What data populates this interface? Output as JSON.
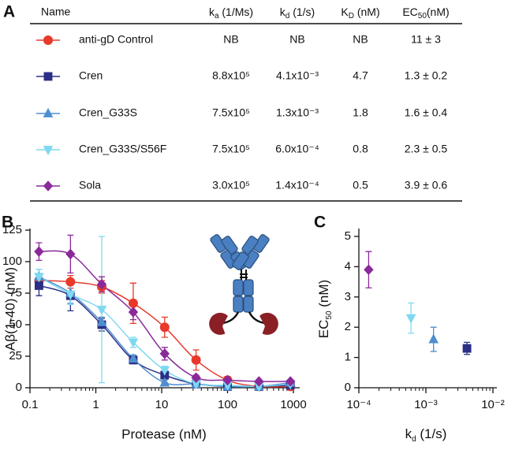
{
  "panels": {
    "a": "A",
    "b": "B",
    "c": "C"
  },
  "table": {
    "header": [
      "Name",
      {
        "main": "k",
        "sub": "a",
        "rest": " (1/Ms)"
      },
      {
        "main": "k",
        "sub": "d",
        "rest": " (1/s)"
      },
      {
        "main": "K",
        "sub": "D",
        "rest": " (nM)"
      },
      {
        "main": "EC",
        "sub": "50",
        "rest": "(nM)"
      }
    ],
    "rows": [
      [
        "NB",
        "NB",
        "NB",
        "11 ± 3"
      ],
      [
        "8.8x10⁵",
        "4.1x10⁻³",
        "4.7",
        "1.3 ± 0.2"
      ],
      [
        "7.5x10⁵",
        "1.3x10⁻³",
        "1.8",
        "1.6 ± 0.4"
      ],
      [
        "7.5x10⁵",
        "6.0x10⁻⁴",
        "0.8",
        "2.3 ± 0.5"
      ],
      [
        "3.0x10⁵",
        "1.4x10⁻⁴",
        "0.5",
        "3.9 ± 0.6"
      ]
    ]
  },
  "chart_data": [
    {
      "type": "line",
      "x_label": "Protease (nM)",
      "y_label": "Aβ(1-40) (nM)",
      "log_x": true,
      "x": [
        0.137,
        0.412,
        1.23,
        3.7,
        11.1,
        33.3,
        100,
        300,
        900
      ],
      "xlim": [
        0.1,
        1000
      ],
      "xticks": [
        0.1,
        1,
        10,
        100,
        1000
      ],
      "ylim": [
        0,
        125
      ],
      "yticks": [
        0,
        25,
        50,
        75,
        100,
        125
      ],
      "series": [
        {
          "name": "anti-gD Control",
          "color": "#e8392b",
          "marker": "circle",
          "values": [
            85,
            84,
            80,
            67,
            48,
            22,
            6,
            1,
            1
          ],
          "errors": [
            5,
            5,
            5,
            16,
            8,
            8,
            3,
            1,
            1
          ]
        },
        {
          "name": "Cren",
          "color": "#2b2f85",
          "marker": "square",
          "values": [
            81,
            73,
            50,
            22,
            10,
            3,
            1,
            1,
            2
          ],
          "errors": [
            8,
            12,
            5,
            3,
            6,
            2,
            1,
            1,
            1
          ]
        },
        {
          "name": "Cren_G33S",
          "color": "#4f8fd0",
          "marker": "triangle-up",
          "values": [
            88,
            75,
            52,
            23,
            4,
            3,
            1,
            1,
            4
          ],
          "errors": [
            6,
            8,
            4,
            3,
            2,
            1,
            1,
            1,
            1
          ]
        },
        {
          "name": "Cren_G33S/S56F",
          "color": "#7fd8f0",
          "marker": "triangle-down",
          "values": [
            88,
            74,
            62,
            36,
            14,
            3,
            2,
            1,
            3
          ],
          "errors": [
            6,
            8,
            58,
            4,
            3,
            1,
            1,
            1,
            1
          ]
        },
        {
          "name": "Sola",
          "color": "#8a2a9a",
          "marker": "diamond",
          "values": [
            108,
            106,
            82,
            60,
            27,
            8,
            6,
            5,
            5
          ],
          "errors": [
            7,
            15,
            6,
            6,
            5,
            2,
            1,
            1,
            1
          ]
        }
      ]
    },
    {
      "type": "scatter",
      "log_x": true,
      "x_label": {
        "main": "k",
        "sub": "d",
        "rest": " (1/s)"
      },
      "y_label": {
        "main": "EC",
        "sub": "50",
        "rest": " (nM)"
      },
      "x": [
        0.00014,
        0.0006,
        0.0013,
        0.0041
      ],
      "values": [
        3.9,
        2.3,
        1.6,
        1.3
      ],
      "errors": [
        0.6,
        0.5,
        0.4,
        0.2
      ],
      "colors": [
        "#8a2a9a",
        "#7fd8f0",
        "#4f8fd0",
        "#2b2f85"
      ],
      "markers": [
        "diamond",
        "triangle-down",
        "triangle-up",
        "square"
      ],
      "xlim": [
        0.0001,
        0.01
      ],
      "xticks": [
        {
          "value": 0.0001,
          "label": "10⁻⁴"
        },
        {
          "value": 0.001,
          "label": "10⁻³"
        },
        {
          "value": 0.01,
          "label": "10⁻²"
        }
      ],
      "ylim": [
        0,
        5
      ],
      "yticks": [
        0,
        1,
        2,
        3,
        4,
        5
      ]
    }
  ]
}
